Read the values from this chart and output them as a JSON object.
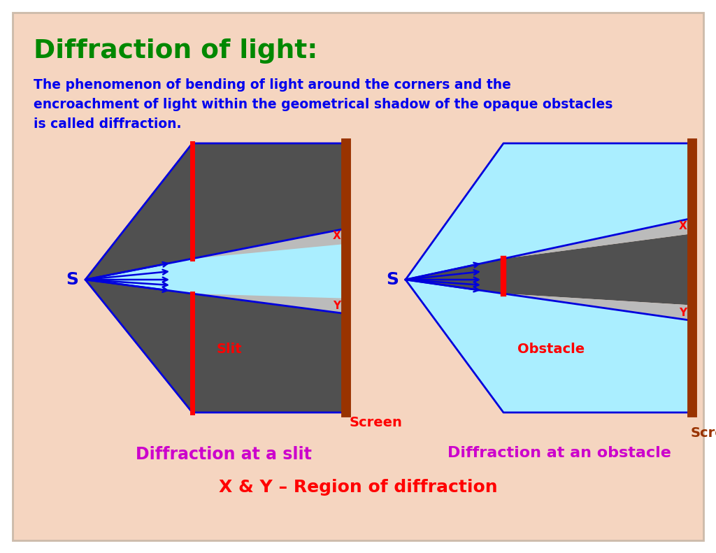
{
  "bg_color": "#FADADD",
  "bg_inner": "#F5D5C0",
  "title": "Diffraction of light:",
  "title_color": "#008800",
  "subtitle_line1": "The phenomenon of bending of light around the corners and the",
  "subtitle_line2": "encroachment of light within the geometrical shadow of the opaque obstacles",
  "subtitle_line3": "is called diffraction.",
  "subtitle_color": "#0000EE",
  "dark_gray": "#505050",
  "light_blue": "#AAEEFF",
  "diff_gray": "#BBBBBB",
  "blue": "#0000DD",
  "red": "#FF0000",
  "screen_color": "#993300",
  "magenta": "#CC00CC",
  "red_label": "#CC0000",
  "label1": "Diffraction at a slit",
  "label2": "Diffraction at an obstacle",
  "label3": "Screen",
  "label4": "X & Y – Region of diffraction",
  "slit_label": "Slit",
  "obstacle_label": "Obstacle",
  "screen_label": "Screen"
}
